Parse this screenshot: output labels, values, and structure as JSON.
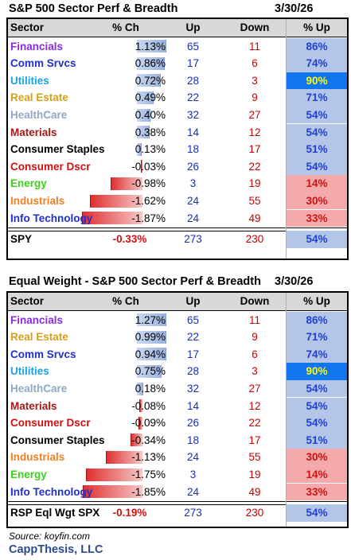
{
  "colors": {
    "blue_bg": "#b4c6e7",
    "red_bg": "#f4aaaa",
    "highlight_bg": "#1175f0",
    "highlight_fg": "#ffff00",
    "pct_up_blue": "#1f3fd6",
    "pct_up_red": "#d01010",
    "pos_bar": "#9db4e0",
    "neg_bar": "#e03030",
    "spy_red": "#d01010",
    "sector_colors": {
      "Financials": "#8a2be2",
      "Comm Srvcs": "#1f2fd0",
      "Utilities": "#1ca0e0",
      "Real Estate": "#d4a017",
      "HealthCare": "#8fa8c8",
      "Materials": "#a81818",
      "Consumer Staples": "#000000",
      "Consumer Dscr": "#d01010",
      "Energy": "#3cd01c",
      "Industrials": "#f08020",
      "Info Technology": "#1f2fd0",
      "SPY": "#000000",
      "RSP Eql Wgt SPX": "#000000"
    }
  },
  "tables": [
    {
      "title": "S&P 500 Sector Perf & Breadth",
      "date": "3/30/26",
      "headers": [
        "Sector",
        "% Ch",
        "Up",
        "Down",
        "% Up"
      ],
      "rows": [
        {
          "sector": "Financials",
          "pct": "1.13%",
          "val": 1.13,
          "up": "65",
          "down": "11",
          "pctup": "86%",
          "bg": "blue"
        },
        {
          "sector": "Comm Srvcs",
          "pct": "0.86%",
          "val": 0.86,
          "up": "17",
          "down": "6",
          "pctup": "74%",
          "bg": "blue"
        },
        {
          "sector": "Utilities",
          "pct": "0.72%",
          "val": 0.72,
          "up": "28",
          "down": "3",
          "pctup": "90%",
          "bg": "highlight"
        },
        {
          "sector": "Real Estate",
          "pct": "0.49%",
          "val": 0.49,
          "up": "22",
          "down": "9",
          "pctup": "71%",
          "bg": "blue"
        },
        {
          "sector": "HealthCare",
          "pct": "0.40%",
          "val": 0.4,
          "up": "32",
          "down": "27",
          "pctup": "54%",
          "bg": "blue"
        },
        {
          "sector": "Materials",
          "pct": "0.38%",
          "val": 0.38,
          "up": "14",
          "down": "12",
          "pctup": "54%",
          "bg": "blue"
        },
        {
          "sector": "Consumer Staples",
          "pct": "0.13%",
          "val": 0.13,
          "up": "18",
          "down": "17",
          "pctup": "51%",
          "bg": "blue"
        },
        {
          "sector": "Consumer Dscr",
          "pct": "-0.03%",
          "val": -0.03,
          "up": "26",
          "down": "22",
          "pctup": "54%",
          "bg": "blue"
        },
        {
          "sector": "Energy",
          "pct": "-0.98%",
          "val": -0.98,
          "up": "3",
          "down": "19",
          "pctup": "14%",
          "bg": "red"
        },
        {
          "sector": "Industrials",
          "pct": "-1.62%",
          "val": -1.62,
          "up": "24",
          "down": "55",
          "pctup": "30%",
          "bg": "red"
        },
        {
          "sector": "Info Technology",
          "pct": "-1.87%",
          "val": -1.87,
          "up": "24",
          "down": "49",
          "pctup": "33%",
          "bg": "red"
        }
      ],
      "summary": {
        "sector": "SPY",
        "pct": "-0.33%",
        "up": "273",
        "down": "230",
        "pctup": "54%",
        "bg": "blue"
      }
    },
    {
      "title": "Equal Weight - S&P 500 Sector Perf & Breadth",
      "date": "3/30/26",
      "headers": [
        "Sector",
        "% Ch",
        "Up",
        "Down",
        "% Up"
      ],
      "rows": [
        {
          "sector": "Financials",
          "pct": "1.27%",
          "val": 1.27,
          "up": "65",
          "down": "11",
          "pctup": "86%",
          "bg": "blue"
        },
        {
          "sector": "Real Estate",
          "pct": "0.99%",
          "val": 0.99,
          "up": "22",
          "down": "9",
          "pctup": "71%",
          "bg": "blue"
        },
        {
          "sector": "Comm Srvcs",
          "pct": "0.94%",
          "val": 0.94,
          "up": "17",
          "down": "6",
          "pctup": "74%",
          "bg": "blue"
        },
        {
          "sector": "Utilities",
          "pct": "0.75%",
          "val": 0.75,
          "up": "28",
          "down": "3",
          "pctup": "90%",
          "bg": "highlight"
        },
        {
          "sector": "HealthCare",
          "pct": "0.18%",
          "val": 0.18,
          "up": "32",
          "down": "27",
          "pctup": "54%",
          "bg": "blue"
        },
        {
          "sector": "Materials",
          "pct": "-0.08%",
          "val": -0.08,
          "up": "14",
          "down": "12",
          "pctup": "54%",
          "bg": "blue"
        },
        {
          "sector": "Consumer Dscr",
          "pct": "-0.09%",
          "val": -0.09,
          "up": "26",
          "down": "22",
          "pctup": "54%",
          "bg": "blue"
        },
        {
          "sector": "Consumer Staples",
          "pct": "-0.34%",
          "val": -0.34,
          "up": "18",
          "down": "17",
          "pctup": "51%",
          "bg": "blue"
        },
        {
          "sector": "Industrials",
          "pct": "-1.13%",
          "val": -1.13,
          "up": "24",
          "down": "55",
          "pctup": "30%",
          "bg": "red"
        },
        {
          "sector": "Energy",
          "pct": "-1.75%",
          "val": -1.75,
          "up": "3",
          "down": "19",
          "pctup": "14%",
          "bg": "red"
        },
        {
          "sector": "Info Technology",
          "pct": "-1.85%",
          "val": -1.85,
          "up": "24",
          "down": "49",
          "pctup": "33%",
          "bg": "red"
        }
      ],
      "summary": {
        "sector": "RSP Eql Wgt SPX",
        "pct": "-0.19%",
        "up": "273",
        "down": "230",
        "pctup": "54%",
        "bg": "blue"
      }
    }
  ],
  "footer": {
    "source": "Source: koyfin.com",
    "brand": "CappThesis, LLC"
  }
}
